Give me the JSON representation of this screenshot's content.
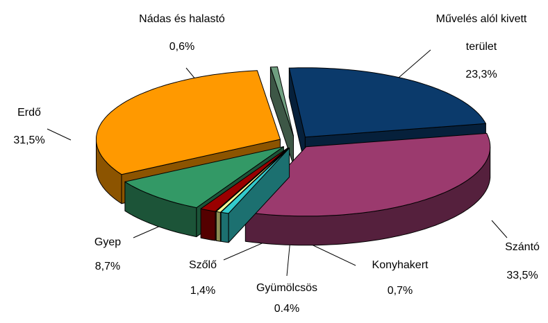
{
  "chart_data": {
    "type": "pie",
    "categories": [
      "Művelés alól kivett terület",
      "Szántó",
      "Konyhakert",
      "Gyümölcsös",
      "Szőlő",
      "Gyep",
      "Erdő",
      "Nádas és halastó"
    ],
    "values": [
      23.3,
      33.5,
      0.7,
      0.4,
      1.4,
      8.7,
      31.5,
      0.6
    ],
    "value_labels": [
      "23,3%",
      "33,5%",
      "0,7%",
      "0.4%",
      "1,4%",
      "8,7%",
      "31,5%",
      "0,6%"
    ],
    "colors": [
      "#0b3a6b",
      "#9b3a6e",
      "#33cccc",
      "#ffff99",
      "#990000",
      "#339966",
      "#ff9900",
      "#6f9f80"
    ],
    "three_d": true,
    "exploded": true
  }
}
